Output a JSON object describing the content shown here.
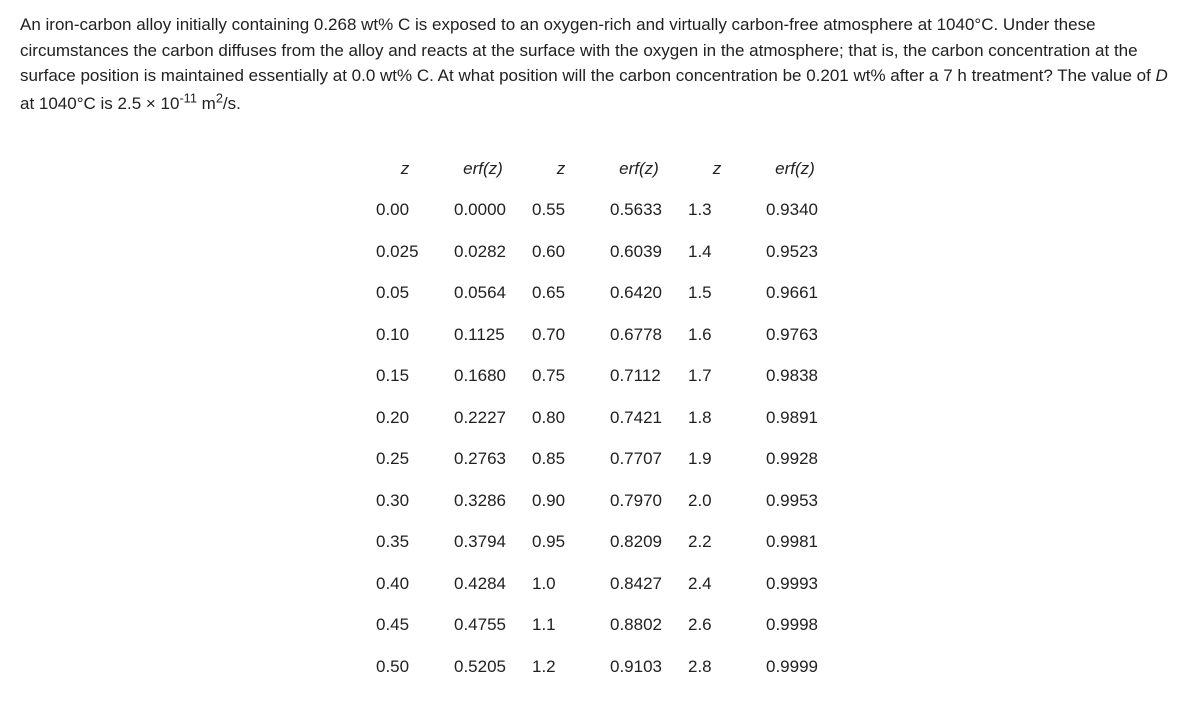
{
  "problem": {
    "text": "An iron-carbon alloy initially containing 0.268 wt% C is exposed to an oxygen-rich and virtually carbon-free atmosphere at 1040°C. Under these circumstances the carbon diffuses from the alloy and reacts at the surface with the oxygen in the atmosphere; that is, the carbon concentration at the surface position is maintained essentially at 0.0 wt% C. At what position will the carbon concentration be 0.201 wt% after a 7 h treatment? The value of D at 1040°C is 2.5 × 10⁻¹¹ m²/s."
  },
  "table": {
    "headers": {
      "z": "z",
      "erfz": "erf(z)"
    },
    "rows": [
      {
        "z1": "0.00",
        "e1": "0.0000",
        "z2": "0.55",
        "e2": "0.5633",
        "z3": "1.3",
        "e3": "0.9340"
      },
      {
        "z1": "0.025",
        "e1": "0.0282",
        "z2": "0.60",
        "e2": "0.6039",
        "z3": "1.4",
        "e3": "0.9523"
      },
      {
        "z1": "0.05",
        "e1": "0.0564",
        "z2": "0.65",
        "e2": "0.6420",
        "z3": "1.5",
        "e3": "0.9661"
      },
      {
        "z1": "0.10",
        "e1": "0.1125",
        "z2": "0.70",
        "e2": "0.6778",
        "z3": "1.6",
        "e3": "0.9763"
      },
      {
        "z1": "0.15",
        "e1": "0.1680",
        "z2": "0.75",
        "e2": "0.7112",
        "z3": "1.7",
        "e3": "0.9838"
      },
      {
        "z1": "0.20",
        "e1": "0.2227",
        "z2": "0.80",
        "e2": "0.7421",
        "z3": "1.8",
        "e3": "0.9891"
      },
      {
        "z1": "0.25",
        "e1": "0.2763",
        "z2": "0.85",
        "e2": "0.7707",
        "z3": "1.9",
        "e3": "0.9928"
      },
      {
        "z1": "0.30",
        "e1": "0.3286",
        "z2": "0.90",
        "e2": "0.7970",
        "z3": "2.0",
        "e3": "0.9953"
      },
      {
        "z1": "0.35",
        "e1": "0.3794",
        "z2": "0.95",
        "e2": "0.8209",
        "z3": "2.2",
        "e3": "0.9981"
      },
      {
        "z1": "0.40",
        "e1": "0.4284",
        "z2": "1.0",
        "e2": "0.8427",
        "z3": "2.4",
        "e3": "0.9993"
      },
      {
        "z1": "0.45",
        "e1": "0.4755",
        "z2": "1.1",
        "e2": "0.8802",
        "z3": "2.6",
        "e3": "0.9998"
      },
      {
        "z1": "0.50",
        "e1": "0.5205",
        "z2": "1.2",
        "e2": "0.9103",
        "z3": "2.8",
        "e3": "0.9999"
      }
    ]
  }
}
